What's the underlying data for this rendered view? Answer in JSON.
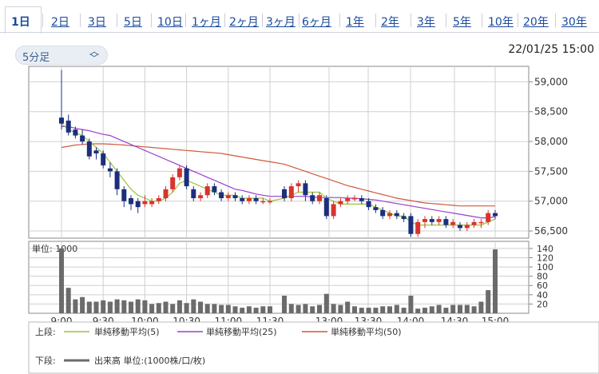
{
  "tabs": [
    {
      "label": "1日",
      "active": true
    },
    {
      "label": "2日"
    },
    {
      "label": "3日"
    },
    {
      "label": "5日"
    },
    {
      "label": "10日"
    },
    {
      "label": "1ヶ月"
    },
    {
      "label": "2ヶ月"
    },
    {
      "label": "3ヶ月"
    },
    {
      "label": "6ヶ月"
    },
    {
      "label": "1年"
    },
    {
      "label": "2年"
    },
    {
      "label": "3年"
    },
    {
      "label": "5年"
    },
    {
      "label": "10年"
    },
    {
      "label": "20年"
    },
    {
      "label": "30年"
    }
  ],
  "interval": {
    "selected": "5分足"
  },
  "datetime": "22/01/25 15:00",
  "colors": {
    "up": "#d9332e",
    "down": "#1c2f7d",
    "ma5": "#9cc43a",
    "ma25": "#9a3fd1",
    "ma50": "#d0593a",
    "volume": "#6b6b6b"
  },
  "chart_data": [
    {
      "type": "candlestick",
      "x": [
        "9:00",
        "9:05",
        "9:10",
        "9:15",
        "9:20",
        "9:25",
        "9:30",
        "9:35",
        "9:40",
        "9:45",
        "9:50",
        "9:55",
        "10:00",
        "10:05",
        "10:10",
        "10:15",
        "10:20",
        "10:25",
        "10:30",
        "10:35",
        "10:40",
        "10:45",
        "10:50",
        "10:55",
        "11:00",
        "11:05",
        "11:10",
        "11:15",
        "11:20",
        "11:25",
        "11:30",
        "12:30",
        "12:35",
        "12:40",
        "12:45",
        "12:50",
        "12:55",
        "13:00",
        "13:05",
        "13:10",
        "13:15",
        "13:20",
        "13:25",
        "13:30",
        "13:35",
        "13:40",
        "13:45",
        "13:50",
        "13:55",
        "14:00",
        "14:05",
        "14:10",
        "14:15",
        "14:20",
        "14:25",
        "14:30",
        "14:35",
        "14:40",
        "14:45",
        "14:50",
        "14:55",
        "15:00"
      ],
      "ohlc": [
        [
          58400,
          59200,
          58200,
          58300
        ],
        [
          58350,
          58450,
          58100,
          58150
        ],
        [
          58200,
          58250,
          58050,
          58100
        ],
        [
          58100,
          58200,
          57950,
          58000
        ],
        [
          58000,
          58050,
          57700,
          57750
        ],
        [
          57850,
          57900,
          57700,
          57800
        ],
        [
          57800,
          57850,
          57550,
          57600
        ],
        [
          57550,
          57650,
          57400,
          57500
        ],
        [
          57500,
          57550,
          57100,
          57200
        ],
        [
          57200,
          57250,
          56900,
          57000
        ],
        [
          57050,
          57100,
          56850,
          56950
        ],
        [
          57000,
          57050,
          56800,
          56900
        ],
        [
          56950,
          57100,
          56900,
          57000
        ],
        [
          56950,
          57050,
          56900,
          57000
        ],
        [
          57000,
          57100,
          56950,
          57050
        ],
        [
          57050,
          57250,
          57000,
          57200
        ],
        [
          57200,
          57450,
          57150,
          57400
        ],
        [
          57400,
          57600,
          57350,
          57550
        ],
        [
          57550,
          57600,
          57200,
          57250
        ],
        [
          57200,
          57250,
          57000,
          57050
        ],
        [
          57050,
          57150,
          57000,
          57100
        ],
        [
          57100,
          57300,
          57050,
          57250
        ],
        [
          57250,
          57300,
          57100,
          57150
        ],
        [
          57150,
          57200,
          57000,
          57050
        ],
        [
          57050,
          57150,
          57000,
          57100
        ],
        [
          57100,
          57150,
          57000,
          57050
        ],
        [
          57050,
          57100,
          56950,
          57000
        ],
        [
          57000,
          57100,
          56950,
          57050
        ],
        [
          57050,
          57100,
          56950,
          57000
        ],
        [
          57000,
          57050,
          56950,
          57000
        ],
        [
          57000,
          57050,
          56950,
          57000
        ],
        [
          57200,
          57250,
          57000,
          57050
        ],
        [
          57050,
          57300,
          57000,
          57250
        ],
        [
          57250,
          57350,
          57150,
          57300
        ],
        [
          57300,
          57350,
          57000,
          57100
        ],
        [
          57100,
          57150,
          56950,
          57000
        ],
        [
          57000,
          57150,
          56950,
          57100
        ],
        [
          57050,
          57100,
          56700,
          56750
        ],
        [
          56750,
          57000,
          56700,
          56950
        ],
        [
          56950,
          57050,
          56900,
          57000
        ],
        [
          57000,
          57100,
          56950,
          57050
        ],
        [
          57050,
          57100,
          57000,
          57050
        ],
        [
          57050,
          57100,
          56950,
          57000
        ],
        [
          57000,
          57050,
          56850,
          56900
        ],
        [
          56900,
          56950,
          56800,
          56850
        ],
        [
          56850,
          56900,
          56700,
          56750
        ],
        [
          56750,
          56850,
          56700,
          56800
        ],
        [
          56800,
          56850,
          56700,
          56750
        ],
        [
          56750,
          56800,
          56650,
          56700
        ],
        [
          56750,
          56800,
          56400,
          56450
        ],
        [
          56450,
          56700,
          56400,
          56650
        ],
        [
          56650,
          56750,
          56550,
          56700
        ],
        [
          56700,
          56750,
          56600,
          56650
        ],
        [
          56650,
          56750,
          56600,
          56700
        ],
        [
          56700,
          56750,
          56550,
          56600
        ],
        [
          56600,
          56700,
          56550,
          56650
        ],
        [
          56600,
          56650,
          56500,
          56550
        ],
        [
          56550,
          56650,
          56500,
          56600
        ],
        [
          56600,
          56700,
          56550,
          56650
        ],
        [
          56650,
          56700,
          56550,
          56650
        ],
        [
          56650,
          56850,
          56600,
          56800
        ],
        [
          56800,
          56850,
          56700,
          56750
        ]
      ],
      "ma5": [
        58300,
        58200,
        58150,
        58100,
        58000,
        57900,
        57800,
        57650,
        57500,
        57350,
        57200,
        57100,
        57050,
        57000,
        57000,
        57050,
        57150,
        57300,
        57350,
        57300,
        57250,
        57200,
        57150,
        57100,
        57100,
        57100,
        57050,
        57050,
        57050,
        57050,
        57000,
        57050,
        57100,
        57150,
        57150,
        57150,
        57150,
        57050,
        57000,
        56950,
        56950,
        56950,
        56950,
        56950,
        56900,
        56850,
        56800,
        56750,
        56750,
        56650,
        56600,
        56600,
        56600,
        56600,
        56600,
        56600,
        56600,
        56600,
        56600,
        56600,
        56650,
        56700
      ],
      "ma25": [
        58250,
        58250,
        58220,
        58200,
        58180,
        58150,
        58120,
        58100,
        58050,
        58000,
        57950,
        57900,
        57850,
        57800,
        57750,
        57700,
        57650,
        57600,
        57550,
        57500,
        57450,
        57400,
        57350,
        57300,
        57250,
        57200,
        57180,
        57150,
        57120,
        57100,
        57080,
        57080,
        57080,
        57080,
        57080,
        57070,
        57060,
        57060,
        57060,
        57060,
        57050,
        57050,
        57040,
        57030,
        57020,
        57000,
        56980,
        56960,
        56940,
        56920,
        56900,
        56880,
        56860,
        56840,
        56820,
        56800,
        56780,
        56760,
        56740,
        56720,
        56720,
        56740
      ],
      "ma50": [
        57900,
        57920,
        57940,
        57950,
        57960,
        57960,
        57960,
        57955,
        57950,
        57940,
        57930,
        57920,
        57910,
        57900,
        57890,
        57880,
        57870,
        57860,
        57850,
        57840,
        57830,
        57820,
        57810,
        57800,
        57780,
        57760,
        57740,
        57720,
        57700,
        57680,
        57660,
        57620,
        57580,
        57540,
        57500,
        57460,
        57420,
        57380,
        57340,
        57300,
        57260,
        57230,
        57200,
        57170,
        57140,
        57110,
        57080,
        57050,
        57030,
        57010,
        56990,
        56970,
        56960,
        56950,
        56940,
        56930,
        56920,
        56920,
        56920,
        56920,
        56920,
        56920
      ],
      "y_ticks": [
        "59,000",
        "58,500",
        "58,000",
        "57,500",
        "57,000",
        "56,500"
      ],
      "y_tick_values": [
        59000,
        58500,
        58000,
        57500,
        57000,
        56500
      ],
      "ylim": [
        56380,
        59260
      ],
      "grid": true
    },
    {
      "type": "bar",
      "title": "単位: 1000",
      "x_ticks": [
        "9:00",
        "9:30",
        "10:00",
        "10:30",
        "11:00",
        "11:30",
        "13:00",
        "13:30",
        "14:00",
        "14:30",
        "15:00"
      ],
      "values": [
        140,
        55,
        30,
        35,
        25,
        25,
        28,
        25,
        30,
        28,
        25,
        30,
        28,
        20,
        22,
        25,
        20,
        28,
        22,
        30,
        25,
        20,
        20,
        18,
        18,
        15,
        12,
        15,
        12,
        15,
        15,
        38,
        20,
        18,
        20,
        15,
        18,
        42,
        20,
        18,
        25,
        15,
        12,
        12,
        12,
        15,
        15,
        18,
        12,
        38,
        10,
        12,
        15,
        18,
        12,
        18,
        18,
        18,
        15,
        25,
        50,
        138
      ],
      "y_ticks": [
        "140",
        "120",
        "100",
        "80",
        "60",
        "40",
        "20"
      ],
      "y_tick_values": [
        140,
        120,
        100,
        80,
        60,
        40,
        20
      ],
      "ylim": [
        0,
        145
      ],
      "grid": true
    }
  ],
  "legend": {
    "upper_label": "上段:",
    "lower_label": "下段:",
    "ma5": "単純移動平均(5)",
    "ma25": "単純移動平均(25)",
    "ma50": "単純移動平均(50)",
    "volume": "出来高 単位:(1000株/口/枚)"
  }
}
